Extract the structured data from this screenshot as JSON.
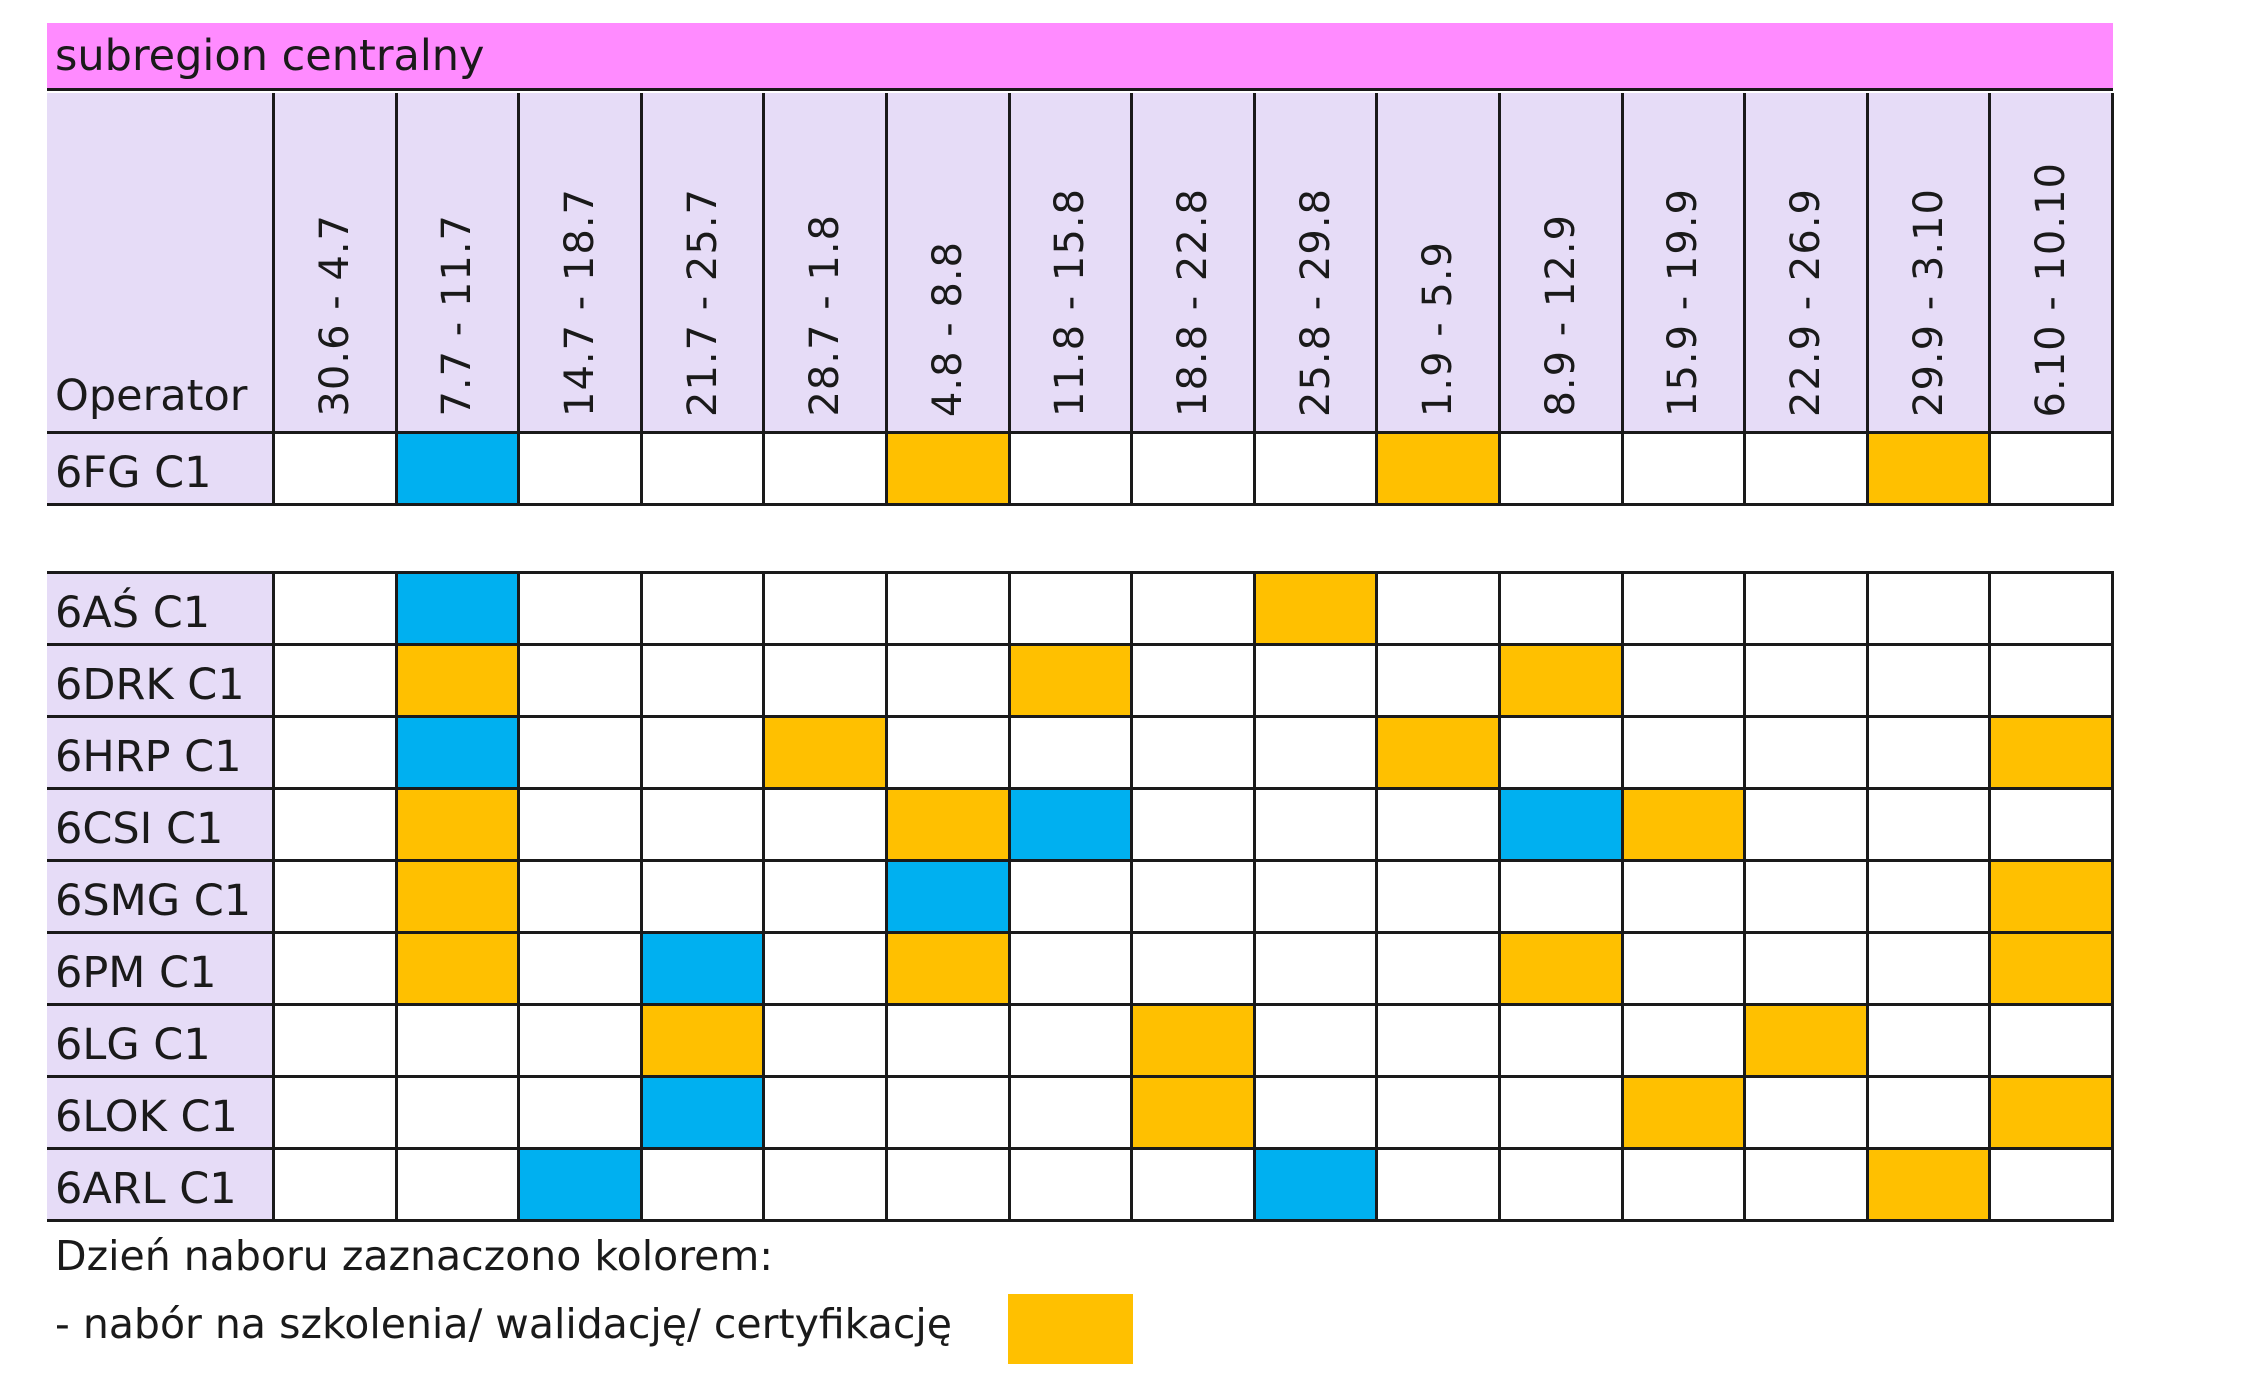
{
  "colors": {
    "banner": "#ff8bff",
    "header": "#e6dcf7",
    "orange": "#ffc000",
    "blue": "#00b0f0",
    "grid": "#1a1a1a",
    "empty": "#ffffff"
  },
  "table": {
    "title": "subregion centralny",
    "operator_header": "Operator",
    "dates": [
      "30.6 - 4.7",
      "7.7 - 11.7",
      "14.7 - 18.7",
      "21.7 - 25.7",
      "28.7 - 1.8",
      "4.8 - 8.8",
      "11.8 - 15.8",
      "18.8 - 22.8",
      "25.8 - 29.8",
      "1.9 - 5.9",
      "8.9 - 12.9",
      "15.9 - 19.9",
      "22.9 - 26.9",
      "29.9 - 3.10",
      "6.10 - 10.10"
    ],
    "groups": [
      {
        "rows": [
          {
            "operator": "6FG C1",
            "cells": [
              "",
              "B",
              "",
              "",
              "",
              "O",
              "",
              "",
              "",
              "O",
              "",
              "",
              "",
              "O",
              ""
            ]
          }
        ]
      },
      {
        "rows": [
          {
            "operator": "6AŚ C1",
            "cells": [
              "",
              "B",
              "",
              "",
              "",
              "",
              "",
              "",
              "O",
              "",
              "",
              "",
              "",
              "",
              ""
            ]
          },
          {
            "operator": "6DRK C1",
            "cells": [
              "",
              "O",
              "",
              "",
              "",
              "",
              "O",
              "",
              "",
              "",
              "O",
              "",
              "",
              "",
              ""
            ]
          },
          {
            "operator": "6HRP C1",
            "cells": [
              "",
              "B",
              "",
              "",
              "O",
              "",
              "",
              "",
              "",
              "O",
              "",
              "",
              "",
              "",
              "O"
            ]
          },
          {
            "operator": "6CSI C1",
            "cells": [
              "",
              "O",
              "",
              "",
              "",
              "O",
              "B",
              "",
              "",
              "",
              "B",
              "O",
              "",
              "",
              ""
            ]
          },
          {
            "operator": "6SMG C1",
            "cells": [
              "",
              "O",
              "",
              "",
              "",
              "B",
              "",
              "",
              "",
              "",
              "",
              "",
              "",
              "",
              "O"
            ]
          },
          {
            "operator": "6PM C1",
            "cells": [
              "",
              "O",
              "",
              "B",
              "",
              "O",
              "",
              "",
              "",
              "",
              "O",
              "",
              "",
              "",
              "O"
            ]
          },
          {
            "operator": "6LG C1",
            "cells": [
              "",
              "",
              "",
              "O",
              "",
              "",
              "",
              "O",
              "",
              "",
              "",
              "",
              "O",
              "",
              ""
            ]
          },
          {
            "operator": "6LOK C1",
            "cells": [
              "",
              "",
              "",
              "B",
              "",
              "",
              "",
              "O",
              "",
              "",
              "",
              "O",
              "",
              "",
              "O"
            ]
          },
          {
            "operator": "6ARL C1",
            "cells": [
              "",
              "",
              "B",
              "",
              "",
              "",
              "",
              "",
              "B",
              "",
              "",
              "",
              "",
              "O",
              ""
            ]
          }
        ]
      }
    ]
  },
  "notes": {
    "line1": "Dzień naboru zaznaczono kolorem:",
    "line2": "- nabór na szkolenia/ walidację/ certyfikację"
  }
}
